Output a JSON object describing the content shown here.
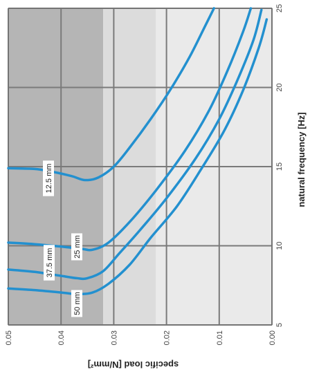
{
  "chart_data": {
    "type": "line",
    "xlabel": "natural frequency [Hz]",
    "ylabel": "specific load [N/mm²]",
    "xlim": [
      5,
      25
    ],
    "ylim": [
      0,
      0.05
    ],
    "x_ticks": [
      "5",
      "10",
      "15",
      "20",
      "25"
    ],
    "y_ticks": [
      "0.05",
      "0.04",
      "0.03",
      "0.02",
      "0.01",
      "0.00"
    ],
    "grid": true,
    "orientation": "rotated-90-clockwise",
    "series": [
      {
        "name": "12.5 mm",
        "points": [
          [
            14.9,
            0.05
          ],
          [
            14.85,
            0.045
          ],
          [
            14.7,
            0.042
          ],
          [
            14.4,
            0.038
          ],
          [
            14.15,
            0.0355
          ],
          [
            14.3,
            0.033
          ],
          [
            15.0,
            0.03
          ],
          [
            16.2,
            0.027
          ],
          [
            18.0,
            0.023
          ],
          [
            20.0,
            0.019
          ],
          [
            22.0,
            0.0155
          ],
          [
            24.0,
            0.0125
          ],
          [
            25.0,
            0.011
          ]
        ]
      },
      {
        "name": "25 mm",
        "points": [
          [
            10.2,
            0.05
          ],
          [
            10.1,
            0.045
          ],
          [
            9.95,
            0.04
          ],
          [
            9.8,
            0.036
          ],
          [
            9.75,
            0.034
          ],
          [
            10.2,
            0.031
          ],
          [
            11.5,
            0.027
          ],
          [
            13.5,
            0.022
          ],
          [
            16.0,
            0.0165
          ],
          [
            18.5,
            0.012
          ],
          [
            21.0,
            0.0085
          ],
          [
            23.5,
            0.0055
          ],
          [
            25.0,
            0.004
          ]
        ]
      },
      {
        "name": "37.5 mm",
        "points": [
          [
            8.5,
            0.05
          ],
          [
            8.35,
            0.045
          ],
          [
            8.1,
            0.04
          ],
          [
            7.95,
            0.037
          ],
          [
            7.95,
            0.035
          ],
          [
            8.4,
            0.032
          ],
          [
            9.5,
            0.029
          ],
          [
            11.0,
            0.025
          ],
          [
            13.0,
            0.02
          ],
          [
            15.5,
            0.0145
          ],
          [
            18.0,
            0.01
          ],
          [
            20.5,
            0.0065
          ],
          [
            23.0,
            0.0035
          ],
          [
            24.9,
            0.002
          ]
        ]
      },
      {
        "name": "50 mm",
        "points": [
          [
            7.3,
            0.05
          ],
          [
            7.2,
            0.045
          ],
          [
            7.05,
            0.04
          ],
          [
            6.95,
            0.037
          ],
          [
            7.05,
            0.034
          ],
          [
            7.6,
            0.031
          ],
          [
            8.8,
            0.027
          ],
          [
            10.5,
            0.023
          ],
          [
            12.5,
            0.018
          ],
          [
            14.8,
            0.0135
          ],
          [
            17.3,
            0.009
          ],
          [
            19.8,
            0.0055
          ],
          [
            22.5,
            0.0025
          ],
          [
            24.3,
            0.001
          ]
        ]
      }
    ],
    "shaded_regions": [
      {
        "from_load": 0.032,
        "to_load": 0.05,
        "color": "#b5b5b5"
      },
      {
        "from_load": 0.022,
        "to_load": 0.032,
        "color": "#dcdcdc"
      },
      {
        "from_load": 0.0,
        "to_load": 0.022,
        "color": "#eaeaea"
      }
    ],
    "colors": {
      "curve": "#2390cf",
      "grid": "#7a7a7a",
      "label_box": "#ffffff"
    }
  }
}
